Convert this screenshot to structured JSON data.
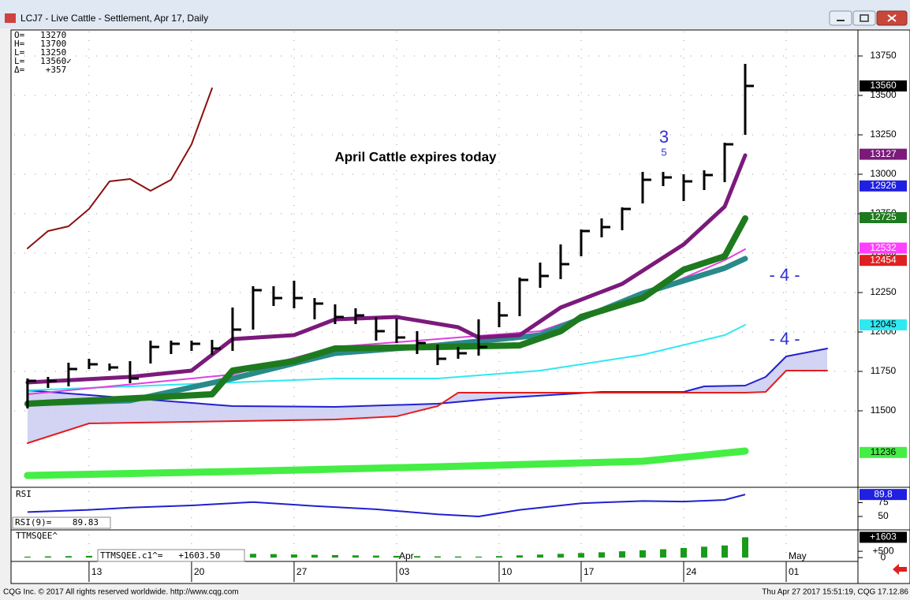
{
  "window": {
    "title": "LCJ7 - Live Cattle - Settlement, Apr 17, Daily",
    "status_left": "CQG Inc. © 2017 All rights reserved worldwide. http://www.cqg.com",
    "status_right": "Thu Apr 27 2017 15:51:19, CQG 17.12.86"
  },
  "chart_data": [
    {
      "type": "ohlc",
      "header": [
        "O=   13270",
        "H=   13700",
        "L=   13250",
        "L=   13560✓",
        "Δ=    +357"
      ],
      "annotations": [
        "April Cattle expires today",
        "3",
        "5",
        "- 4 -",
        "- 4 -"
      ],
      "x": [
        1,
        2,
        3,
        4,
        5,
        6,
        7,
        8,
        9,
        10,
        11,
        12,
        13,
        14,
        15,
        16,
        17,
        18,
        19,
        20,
        21,
        22,
        23,
        24,
        25,
        26,
        27,
        28,
        29,
        30,
        31,
        32,
        33,
        34,
        35,
        36
      ],
      "high": [
        11705,
        11715,
        11805,
        11830,
        11800,
        11815,
        11945,
        11945,
        11945,
        11950,
        12155,
        12290,
        12290,
        12325,
        12215,
        12175,
        12150,
        12095,
        12085,
        12005,
        11920,
        11905,
        12080,
        12190,
        12345,
        12440,
        12555,
        12650,
        12720,
        12790,
        13015,
        13015,
        13000,
        13025,
        13200,
        13700
      ],
      "low": [
        11515,
        11645,
        11655,
        11765,
        11755,
        11675,
        11800,
        11860,
        11880,
        11855,
        11880,
        12015,
        12165,
        12150,
        12080,
        12050,
        12050,
        11945,
        11930,
        11860,
        11790,
        11830,
        11850,
        12030,
        12100,
        12280,
        12335,
        12480,
        12600,
        12645,
        12815,
        12925,
        12830,
        12900,
        12950,
        13250
      ],
      "close": [
        11690,
        11690,
        11765,
        11795,
        11775,
        11705,
        11905,
        11925,
        11925,
        11895,
        12015,
        12265,
        12215,
        12215,
        12180,
        12095,
        12105,
        12005,
        11965,
        11930,
        11830,
        11865,
        11905,
        12105,
        12330,
        12355,
        12430,
        12640,
        12665,
        12780,
        12965,
        12980,
        12955,
        12995,
        13190,
        13560
      ],
      "color": "#000000",
      "xlim": [
        0.35,
        41.5
      ],
      "xticks": [
        {
          "value": 4,
          "label": "13"
        },
        {
          "value": 9,
          "label": "20"
        },
        {
          "value": 14,
          "label": "27"
        },
        {
          "value": 19,
          "label": "03"
        },
        {
          "value": 24,
          "label": "10"
        },
        {
          "value": 28,
          "label": "17"
        },
        {
          "value": 33,
          "label": "24"
        },
        {
          "value": 38,
          "label": "01"
        }
      ],
      "month_labels": [
        {
          "value": 19,
          "label": "Apr"
        },
        {
          "value": 38,
          "label": "May"
        }
      ],
      "ylim": [
        11020,
        13905
      ],
      "yticks": [
        11500,
        11750,
        12000,
        12250,
        12500,
        12750,
        13000,
        13250,
        13500,
        13750
      ],
      "grid": true,
      "cloud_colors": {
        "fill": "#c8c8f0"
      },
      "lines": [
        {
          "color": "#2020d0",
          "width": 2,
          "x": [
            1,
            6,
            11,
            16,
            21,
            24,
            29,
            33,
            34,
            36,
            37,
            38,
            39,
            40
          ],
          "values": [
            11630,
            11580,
            11530,
            11525,
            11545,
            11580,
            11620,
            11620,
            11655,
            11660,
            11715,
            11845,
            11870,
            11895
          ]
        },
        {
          "color": "#e02020",
          "width": 2,
          "x": [
            1,
            4,
            16,
            19,
            21,
            22,
            36,
            37,
            38,
            40
          ],
          "values": [
            11295,
            11420,
            11445,
            11465,
            11530,
            11615,
            11615,
            11620,
            11755,
            11755
          ]
        },
        {
          "color": "#44ee44",
          "width": 9,
          "x": [
            1,
            11,
            21,
            31,
            36
          ],
          "values": [
            11090,
            11115,
            11145,
            11180,
            11245
          ]
        },
        {
          "color": "#30e8f0",
          "width": 2,
          "x": [
            1,
            11,
            16,
            21,
            26,
            31,
            35,
            36
          ],
          "values": [
            11630,
            11680,
            11705,
            11705,
            11755,
            11855,
            11980,
            12045
          ]
        },
        {
          "color": "#e040e0",
          "width": 2,
          "x": [
            1,
            11,
            16,
            21,
            26,
            31,
            35,
            36
          ],
          "values": [
            11605,
            11730,
            11905,
            11955,
            12005,
            12230,
            12455,
            12525
          ]
        },
        {
          "color": "#2a8a8a",
          "width": 7,
          "x": [
            1,
            6,
            11,
            16,
            21,
            26,
            31,
            35,
            36
          ],
          "values": [
            11545,
            11565,
            11705,
            11865,
            11915,
            11980,
            12245,
            12405,
            12465
          ]
        },
        {
          "color": "#1e7a1e",
          "width": 8,
          "x": [
            1,
            10,
            11,
            14,
            16,
            21,
            25,
            27,
            28,
            31,
            33,
            35,
            36
          ],
          "values": [
            11545,
            11605,
            11755,
            11815,
            11895,
            11905,
            11915,
            12005,
            12095,
            12215,
            12395,
            12480,
            12720
          ]
        },
        {
          "color": "#7b1a7b",
          "width": 5,
          "x": [
            1,
            6,
            9,
            11,
            14,
            16,
            19,
            22,
            23,
            25,
            27,
            30,
            33,
            35,
            36
          ],
          "values": [
            11680,
            11715,
            11755,
            11955,
            11980,
            12080,
            12095,
            12030,
            11965,
            11980,
            12155,
            12305,
            12555,
            12795,
            13120
          ]
        },
        {
          "color": "#8b1010",
          "width": 2,
          "x": [
            1,
            2,
            3,
            4,
            5,
            6,
            7,
            8,
            9,
            10
          ],
          "values": [
            12530,
            12640,
            12670,
            12780,
            12955,
            12970,
            12895,
            12965,
            13190,
            13545
          ]
        }
      ],
      "price_labels": [
        {
          "value": 13560,
          "color": "#000000",
          "text_color": "#ffffff"
        },
        {
          "value": 13127,
          "color": "#7b1a7b",
          "text_color": "#ffffff"
        },
        {
          "value": 12926,
          "color": "#2020e0",
          "text_color": "#ffffff"
        },
        {
          "value": 12725,
          "color": "#1e7a1e",
          "text_color": "#ffffff"
        },
        {
          "value": 12532,
          "color": "#ff40ff",
          "text_color": "#ffffff"
        },
        {
          "value": 12454,
          "color": "#e02020",
          "text_color": "#ffffff"
        },
        {
          "value": 12045,
          "color": "#30e8f0",
          "text_color": "#000000"
        },
        {
          "value": 11236,
          "color": "#44ee44",
          "text_color": "#000000"
        }
      ]
    },
    {
      "type": "line",
      "label": "RSI",
      "reading": "RSI(9)=    89.83",
      "x": [
        1,
        4,
        6,
        9,
        12,
        15,
        18,
        21,
        23,
        25,
        28,
        31,
        33,
        35,
        36
      ],
      "values": [
        58,
        62,
        66,
        70,
        76,
        69,
        63,
        54,
        50,
        62,
        74,
        78,
        77,
        80,
        89.83
      ],
      "color": "#2020d0",
      "ylim": [
        40,
        100
      ],
      "yticks": [
        50,
        75
      ],
      "badge": 89.8,
      "badge_color": "#2020e0"
    },
    {
      "type": "bar",
      "label": "TTMSQEE^",
      "reading": "TTMSQEE.c1^=   +1603.50",
      "x": [
        1,
        2,
        3,
        4,
        5,
        6,
        7,
        8,
        9,
        10,
        11,
        12,
        13,
        14,
        15,
        16,
        17,
        18,
        19,
        20,
        21,
        22,
        23,
        24,
        25,
        26,
        27,
        28,
        29,
        30,
        31,
        32,
        33,
        34,
        35,
        36
      ],
      "values": [
        80,
        100,
        120,
        140,
        150,
        130,
        110,
        100,
        150,
        200,
        260,
        300,
        280,
        250,
        220,
        200,
        180,
        160,
        140,
        120,
        100,
        90,
        80,
        120,
        180,
        240,
        300,
        360,
        420,
        500,
        580,
        660,
        760,
        860,
        960,
        1603
      ],
      "color": "#1a9a1a",
      "ylim": [
        -300,
        2000
      ],
      "yticks": [
        0,
        {
          "value": 500,
          "label": "+500"
        }
      ],
      "badge": {
        "value": 1603,
        "label": "+1603"
      },
      "badge_color": "#000000"
    }
  ]
}
